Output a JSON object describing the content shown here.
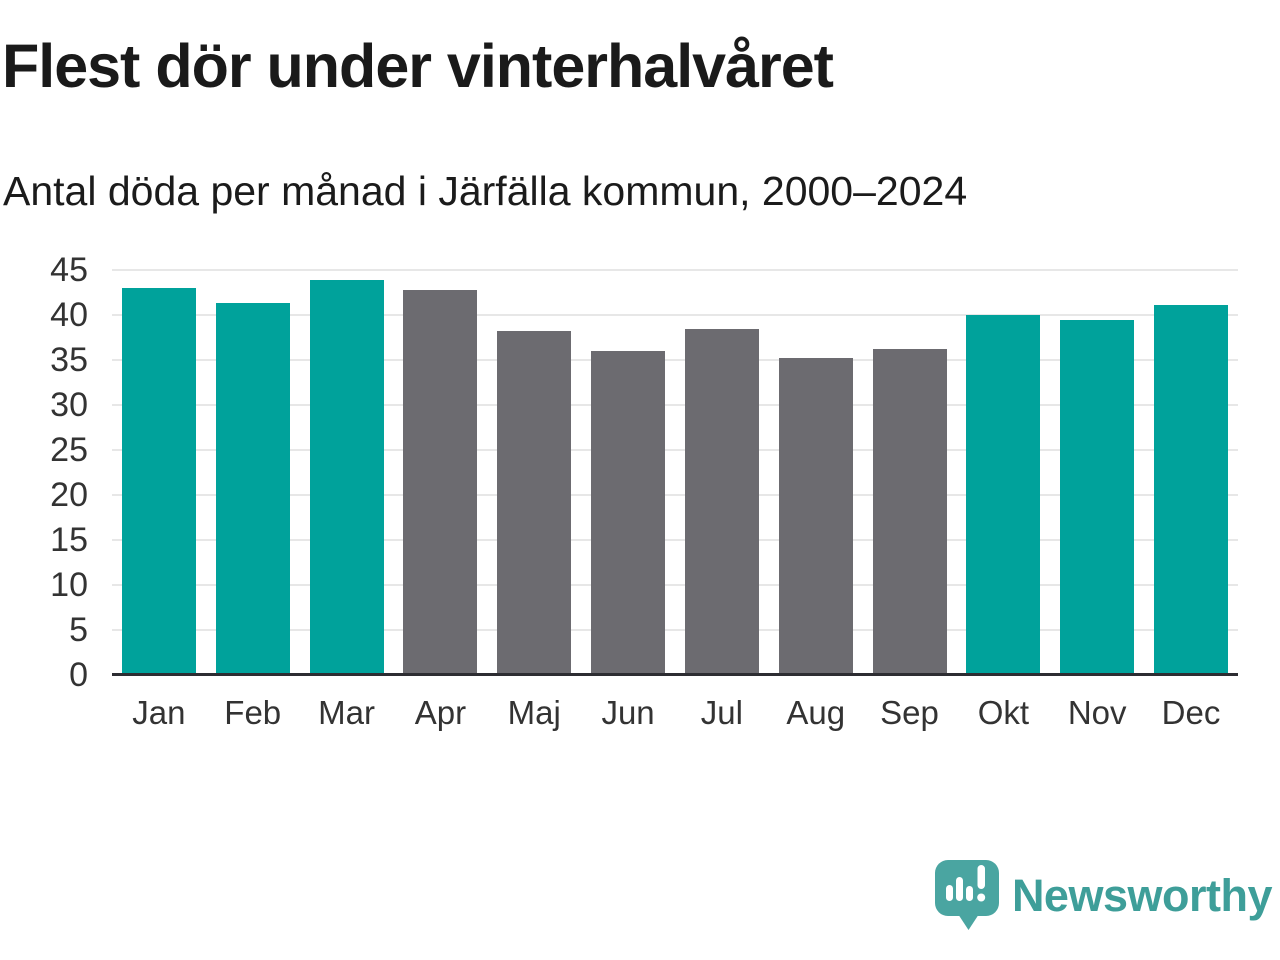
{
  "chart_data": {
    "type": "bar",
    "title": "Flest dör under vinterhalvåret",
    "subtitle": "Antal döda per månad i Järfälla kommun, 2000–2024",
    "categories": [
      "Jan",
      "Feb",
      "Mar",
      "Apr",
      "Maj",
      "Jun",
      "Jul",
      "Aug",
      "Sep",
      "Okt",
      "Nov",
      "Dec"
    ],
    "values": [
      43.0,
      41.3,
      43.9,
      42.8,
      38.2,
      36.0,
      38.5,
      35.2,
      36.2,
      40.0,
      39.5,
      41.1
    ],
    "bar_colors": [
      "#00a29b",
      "#00a29b",
      "#00a29b",
      "#6c6b70",
      "#6c6b70",
      "#6c6b70",
      "#6c6b70",
      "#6c6b70",
      "#6c6b70",
      "#00a29b",
      "#00a29b",
      "#00a29b"
    ],
    "palette": {
      "winter_teal": "#00a29b",
      "summer_gray": "#6c6b70",
      "gridline": "#e7e7e7",
      "axis": "#2d2d32",
      "tick_text": "#333333"
    },
    "xlabel": "",
    "ylabel": "",
    "ylim": [
      0,
      45
    ],
    "yticks": [
      0,
      5,
      10,
      15,
      20,
      25,
      30,
      35,
      40,
      45
    ],
    "grid": "horizontal",
    "legend": "none"
  },
  "footer": {
    "brand": "Newsworthy",
    "brand_color": "#3e9e99",
    "logo_color": "#4aa5a1",
    "logo_mark_color": "#ffffff"
  }
}
